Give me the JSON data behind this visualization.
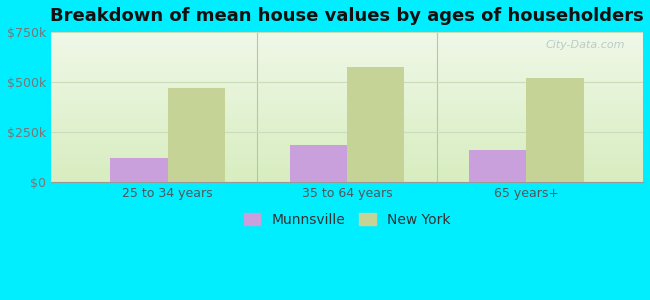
{
  "title": "Breakdown of mean house values by ages of householders",
  "categories": [
    "25 to 34 years",
    "35 to 64 years",
    "65 years+"
  ],
  "munnsville_values": [
    120000,
    185000,
    160000
  ],
  "newyork_values": [
    470000,
    575000,
    520000
  ],
  "munnsville_color": "#c9a0dc",
  "newyork_color": "#c5d496",
  "background_color": "#00eeff",
  "grad_top": "#f0f8e8",
  "grad_bottom": "#d8edc0",
  "ylim": [
    0,
    750000
  ],
  "yticks": [
    0,
    250000,
    500000,
    750000
  ],
  "ytick_labels": [
    "$0",
    "$250k",
    "$500k",
    "$750k"
  ],
  "legend_labels": [
    "Munnsville",
    "New York"
  ],
  "bar_width": 0.32,
  "watermark": "City-Data.com",
  "title_fontsize": 13,
  "tick_fontsize": 9,
  "legend_fontsize": 10,
  "separator_color": "#aaccaa",
  "grid_color": "#c8ddb8"
}
